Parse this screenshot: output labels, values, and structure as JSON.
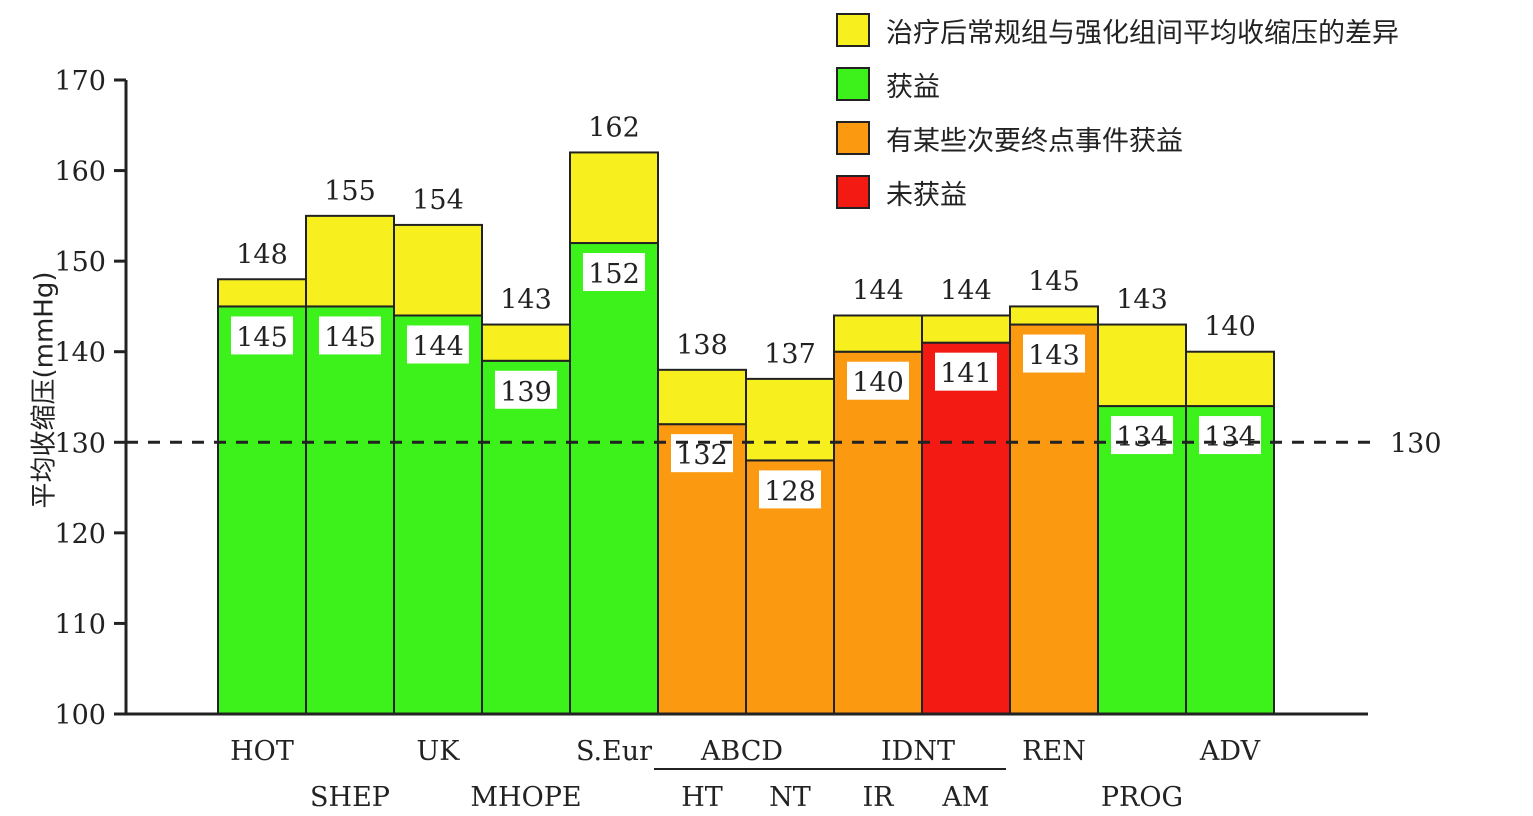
{
  "chart_data": {
    "type": "bar",
    "ylabel": "平均收缩压(mmHg)",
    "ylim": [
      100,
      170
    ],
    "yticks": [
      100,
      110,
      120,
      130,
      140,
      150,
      160,
      170
    ],
    "reference_line": {
      "value": 130,
      "label": "130"
    },
    "legend_position": "top-right",
    "legend": [
      {
        "key": "diff",
        "label": "治疗后常规组与强化组间平均收缩压的差异",
        "color": "#f7f01e"
      },
      {
        "key": "benefit",
        "label": "获益",
        "color": "#3df21a"
      },
      {
        "key": "partial",
        "label": "有某些次要终点事件获益",
        "color": "#fb9a10"
      },
      {
        "key": "none",
        "label": "未获益",
        "color": "#f21a12"
      }
    ],
    "bars": [
      {
        "label": "HOT",
        "row": 1,
        "conventional": 148,
        "intensive": 145,
        "outcome": "benefit"
      },
      {
        "label": "SHEP",
        "row": 2,
        "conventional": 155,
        "intensive": 145,
        "outcome": "benefit"
      },
      {
        "label": "UK",
        "row": 1,
        "conventional": 154,
        "intensive": 144,
        "outcome": "benefit"
      },
      {
        "label": "MHOPE",
        "row": 2,
        "conventional": 143,
        "intensive": 139,
        "outcome": "benefit"
      },
      {
        "label": "S.Eur",
        "row": 1,
        "conventional": 162,
        "intensive": 152,
        "outcome": "benefit"
      },
      {
        "label": "HT",
        "row": 2,
        "conventional": 138,
        "intensive": 132,
        "outcome": "partial"
      },
      {
        "label": "NT",
        "row": 2,
        "conventional": 137,
        "intensive": 128,
        "outcome": "partial"
      },
      {
        "label": "IR",
        "row": 2,
        "conventional": 144,
        "intensive": 140,
        "outcome": "partial"
      },
      {
        "label": "AM",
        "row": 2,
        "conventional": 144,
        "intensive": 141,
        "outcome": "none"
      },
      {
        "label": "REN",
        "row": 1,
        "conventional": 145,
        "intensive": 143,
        "outcome": "partial"
      },
      {
        "label": "PROG",
        "row": 2,
        "conventional": 143,
        "intensive": 134,
        "outcome": "benefit"
      },
      {
        "label": "ADV",
        "row": 1,
        "conventional": 140,
        "intensive": 134,
        "outcome": "benefit"
      }
    ],
    "groups": [
      {
        "label": "ABCD",
        "from": 5,
        "to": 6
      },
      {
        "label": "IDNT",
        "from": 7,
        "to": 8
      }
    ]
  }
}
